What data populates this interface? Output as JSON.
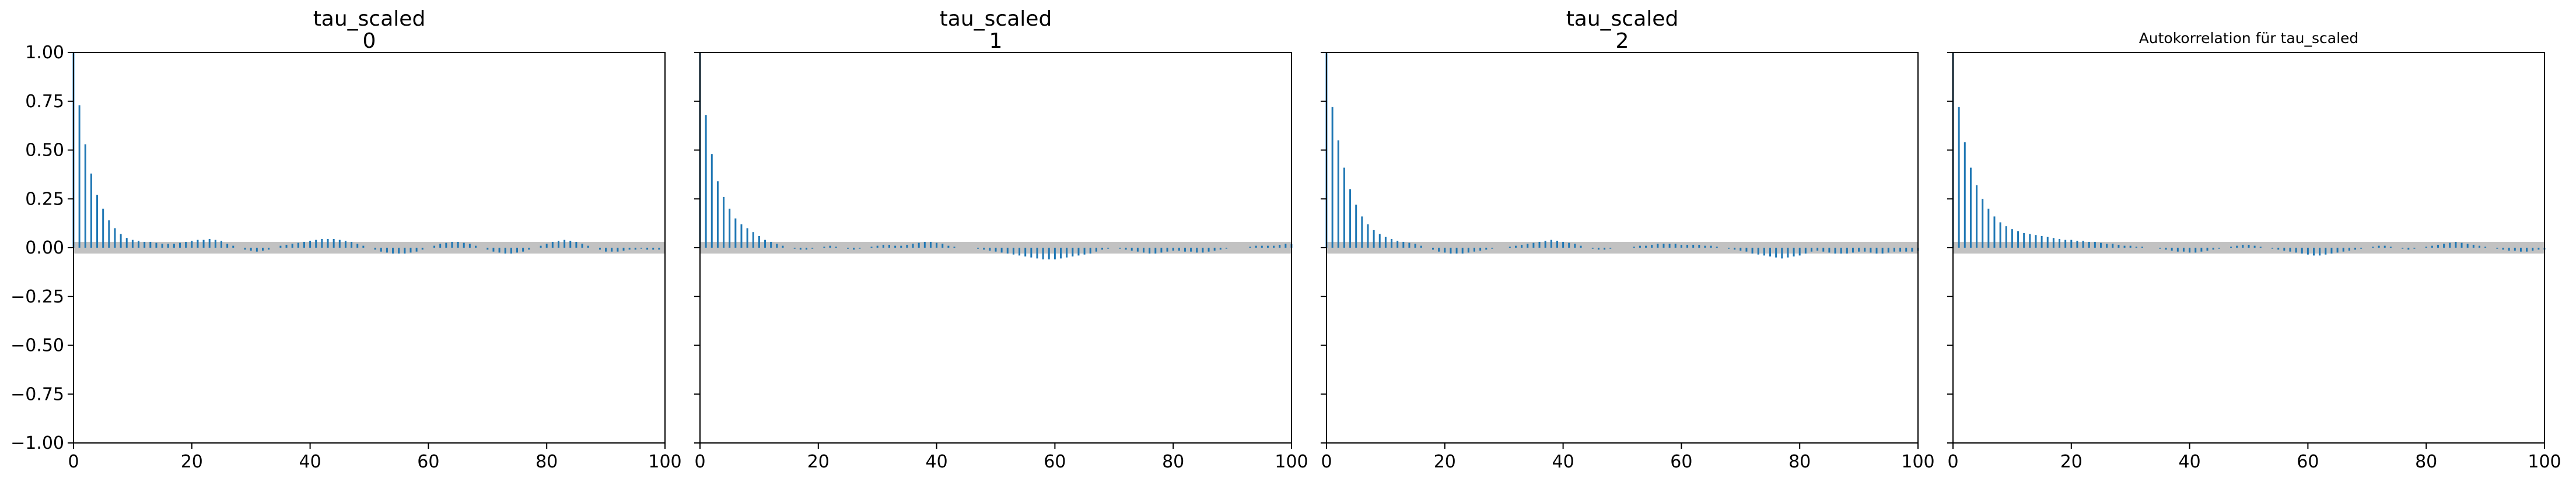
{
  "chart_data": [
    {
      "type": "bar",
      "title": [
        "tau_scaled",
        "0"
      ],
      "title_style": "large",
      "xlabel": "",
      "ylabel": "",
      "xlim": [
        0,
        100
      ],
      "ylim": [
        -1.0,
        1.0
      ],
      "xticks": [
        "0",
        "20",
        "40",
        "60",
        "80",
        "100"
      ],
      "yticks": [
        "1.00",
        "0.75",
        "0.50",
        "0.25",
        "0.00",
        "−0.25",
        "−0.50",
        "−0.75",
        "−1.00"
      ],
      "show_ytick_labels": true,
      "confidence_band": [
        -0.03,
        0.03
      ],
      "acf": [
        1.0,
        0.73,
        0.53,
        0.38,
        0.27,
        0.2,
        0.14,
        0.1,
        0.07,
        0.05,
        0.04,
        0.035,
        0.03,
        0.03,
        0.025,
        0.02,
        0.02,
        0.02,
        0.025,
        0.03,
        0.035,
        0.04,
        0.04,
        0.045,
        0.04,
        0.035,
        0.02,
        0.01,
        0.0,
        -0.01,
        -0.015,
        -0.02,
        -0.015,
        -0.01,
        0.0,
        0.01,
        0.015,
        0.02,
        0.025,
        0.03,
        0.035,
        0.04,
        0.045,
        0.045,
        0.045,
        0.04,
        0.035,
        0.03,
        0.02,
        0.01,
        0.0,
        -0.01,
        -0.02,
        -0.025,
        -0.03,
        -0.03,
        -0.03,
        -0.025,
        -0.02,
        -0.01,
        0.0,
        0.01,
        0.02,
        0.025,
        0.03,
        0.03,
        0.025,
        0.02,
        0.01,
        0.0,
        -0.01,
        -0.02,
        -0.025,
        -0.03,
        -0.03,
        -0.025,
        -0.02,
        -0.01,
        0.0,
        0.01,
        0.02,
        0.03,
        0.035,
        0.04,
        0.035,
        0.03,
        0.02,
        0.01,
        0.0,
        -0.01,
        -0.02,
        -0.02,
        -0.02,
        -0.015,
        -0.01,
        -0.01,
        -0.005,
        -0.01,
        -0.01,
        -0.01
      ]
    },
    {
      "type": "bar",
      "title": [
        "tau_scaled",
        "1"
      ],
      "title_style": "large",
      "xlabel": "",
      "ylabel": "",
      "xlim": [
        0,
        100
      ],
      "ylim": [
        -1.0,
        1.0
      ],
      "xticks": [
        "0",
        "20",
        "40",
        "60",
        "80",
        "100"
      ],
      "yticks": [
        "1.00",
        "0.75",
        "0.50",
        "0.25",
        "0.00",
        "−0.25",
        "−0.50",
        "−0.75",
        "−1.00"
      ],
      "show_ytick_labels": false,
      "confidence_band": [
        -0.03,
        0.03
      ],
      "acf": [
        1.0,
        0.68,
        0.48,
        0.34,
        0.26,
        0.2,
        0.15,
        0.12,
        0.1,
        0.08,
        0.06,
        0.04,
        0.03,
        0.02,
        0.01,
        0.0,
        -0.005,
        -0.01,
        -0.01,
        -0.005,
        0.0,
        0.005,
        0.01,
        0.005,
        0.0,
        -0.005,
        -0.01,
        -0.005,
        0.0,
        0.005,
        0.01,
        0.015,
        0.015,
        0.01,
        0.01,
        0.015,
        0.02,
        0.025,
        0.03,
        0.03,
        0.025,
        0.02,
        0.01,
        0.005,
        0.0,
        0.0,
        0.0,
        -0.005,
        -0.01,
        -0.015,
        -0.02,
        -0.025,
        -0.03,
        -0.035,
        -0.04,
        -0.045,
        -0.05,
        -0.055,
        -0.06,
        -0.06,
        -0.06,
        -0.055,
        -0.05,
        -0.045,
        -0.04,
        -0.035,
        -0.03,
        -0.02,
        -0.01,
        -0.005,
        0.0,
        -0.005,
        -0.01,
        -0.015,
        -0.02,
        -0.025,
        -0.03,
        -0.03,
        -0.025,
        -0.02,
        -0.015,
        -0.015,
        -0.02,
        -0.02,
        -0.025,
        -0.025,
        -0.02,
        -0.015,
        -0.01,
        -0.005,
        0.0,
        0.0,
        0.0,
        0.005,
        0.01,
        0.01,
        0.01,
        0.01,
        0.015,
        0.02,
        0.02
      ]
    },
    {
      "type": "bar",
      "title": [
        "tau_scaled",
        "2"
      ],
      "title_style": "large",
      "xlabel": "",
      "ylabel": "",
      "xlim": [
        0,
        100
      ],
      "ylim": [
        -1.0,
        1.0
      ],
      "xticks": [
        "0",
        "20",
        "40",
        "60",
        "80",
        "100"
      ],
      "yticks": [
        "1.00",
        "0.75",
        "0.50",
        "0.25",
        "0.00",
        "−0.25",
        "−0.50",
        "−0.75",
        "−1.00"
      ],
      "show_ytick_labels": false,
      "confidence_band": [
        -0.03,
        0.03
      ],
      "acf": [
        1.0,
        0.72,
        0.55,
        0.41,
        0.3,
        0.22,
        0.16,
        0.12,
        0.09,
        0.07,
        0.055,
        0.045,
        0.035,
        0.03,
        0.025,
        0.02,
        0.01,
        0.0,
        -0.01,
        -0.02,
        -0.025,
        -0.03,
        -0.03,
        -0.03,
        -0.025,
        -0.02,
        -0.015,
        -0.01,
        -0.005,
        0.0,
        0.0,
        0.005,
        0.01,
        0.015,
        0.02,
        0.025,
        0.03,
        0.035,
        0.04,
        0.035,
        0.03,
        0.025,
        0.02,
        0.01,
        0.0,
        -0.005,
        -0.01,
        -0.01,
        -0.005,
        0.0,
        0.0,
        0.0,
        0.005,
        0.01,
        0.01,
        0.015,
        0.02,
        0.02,
        0.02,
        0.02,
        0.015,
        0.015,
        0.015,
        0.015,
        0.01,
        0.01,
        0.005,
        0.0,
        -0.005,
        -0.01,
        -0.015,
        -0.02,
        -0.03,
        -0.035,
        -0.04,
        -0.045,
        -0.05,
        -0.055,
        -0.05,
        -0.045,
        -0.04,
        -0.03,
        -0.02,
        -0.015,
        -0.02,
        -0.025,
        -0.03,
        -0.03,
        -0.03,
        -0.025,
        -0.02,
        -0.02,
        -0.025,
        -0.03,
        -0.03,
        -0.025,
        -0.02,
        -0.02,
        -0.02,
        -0.02,
        -0.015
      ]
    },
    {
      "type": "bar",
      "title": [
        "Autokorrelation für tau_scaled"
      ],
      "title_style": "small",
      "xlabel": "",
      "ylabel": "",
      "xlim": [
        0,
        100
      ],
      "ylim": [
        -1.0,
        1.0
      ],
      "xticks": [
        "0",
        "20",
        "40",
        "60",
        "80",
        "100"
      ],
      "yticks": [
        "1.00",
        "0.75",
        "0.50",
        "0.25",
        "0.00",
        "−0.25",
        "−0.50",
        "−0.75",
        "−1.00"
      ],
      "show_ytick_labels": false,
      "confidence_band": [
        -0.03,
        0.03
      ],
      "acf": [
        1.0,
        0.72,
        0.54,
        0.41,
        0.32,
        0.25,
        0.2,
        0.16,
        0.13,
        0.11,
        0.095,
        0.085,
        0.075,
        0.07,
        0.065,
        0.06,
        0.055,
        0.05,
        0.045,
        0.04,
        0.04,
        0.035,
        0.035,
        0.03,
        0.03,
        0.025,
        0.02,
        0.02,
        0.015,
        0.01,
        0.01,
        0.005,
        0.005,
        0.0,
        0.0,
        -0.005,
        -0.01,
        -0.015,
        -0.02,
        -0.02,
        -0.025,
        -0.025,
        -0.02,
        -0.015,
        -0.01,
        -0.005,
        0.0,
        0.005,
        0.01,
        0.015,
        0.015,
        0.01,
        0.005,
        0.0,
        -0.005,
        -0.01,
        -0.015,
        -0.02,
        -0.025,
        -0.03,
        -0.035,
        -0.04,
        -0.04,
        -0.035,
        -0.03,
        -0.025,
        -0.02,
        -0.015,
        -0.01,
        -0.005,
        0.0,
        0.005,
        0.01,
        0.01,
        0.005,
        0.0,
        -0.005,
        -0.01,
        -0.005,
        0.0,
        0.005,
        0.01,
        0.015,
        0.02,
        0.025,
        0.03,
        0.025,
        0.02,
        0.015,
        0.01,
        0.005,
        0.0,
        -0.005,
        -0.01,
        -0.015,
        -0.015,
        -0.02,
        -0.02,
        -0.015,
        -0.01,
        -0.01
      ]
    }
  ],
  "colors": {
    "bar": "#1f77b4",
    "band": "#c2c2c2",
    "axis": "#000000"
  }
}
